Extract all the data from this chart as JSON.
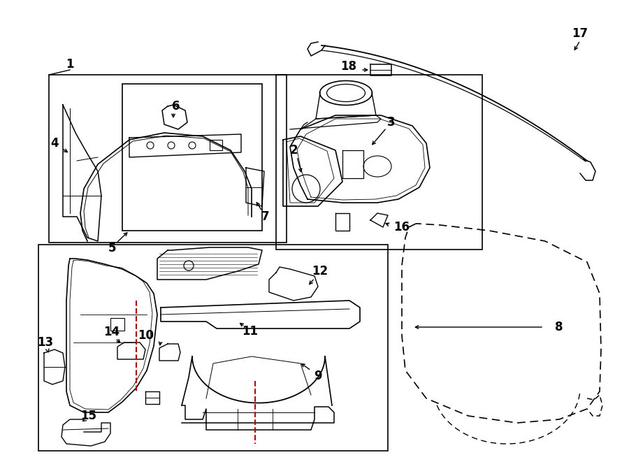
{
  "bg_color": "#ffffff",
  "lc": "#000000",
  "rc": "#cc0000",
  "fig_w": 9.0,
  "fig_h": 6.61,
  "dpi": 100,
  "xlim": [
    0,
    900
  ],
  "ylim": [
    0,
    661
  ]
}
